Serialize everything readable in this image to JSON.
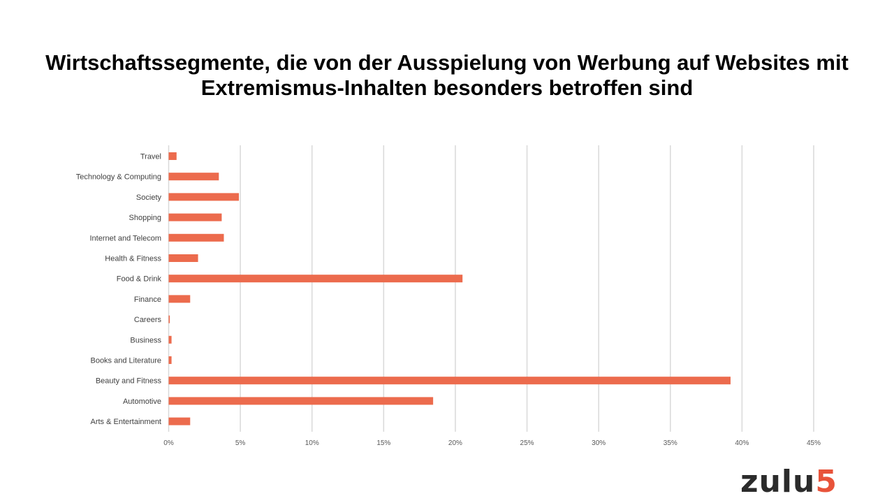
{
  "chart_data": {
    "type": "bar",
    "orientation": "horizontal",
    "title": "Wirtschaftssegmente, die von der Ausspielung von Werbung auf Websites mit Extremismus-Inhalten besonders betroffen sind",
    "categories": [
      "Travel",
      "Technology & Computing",
      "Society",
      "Shopping",
      "Internet and Telecom",
      "Health & Fitness",
      "Food & Drink",
      "Finance",
      "Careers",
      "Business",
      "Books and Literature",
      "Beauty and Fitness",
      "Automotive",
      "Arts & Entertainment"
    ],
    "values": [
      0.55,
      3.5,
      4.9,
      3.7,
      3.85,
      2.05,
      20.5,
      1.5,
      0.08,
      0.2,
      0.2,
      39.2,
      18.45,
      1.5
    ],
    "xlim": [
      0,
      45
    ],
    "xticks": [
      "0%",
      "5%",
      "10%",
      "15%",
      "20%",
      "25%",
      "30%",
      "35%",
      "40%",
      "45%"
    ],
    "grid": true,
    "bar_color": "#ec6b4d",
    "xlabel": "",
    "ylabel": ""
  },
  "logo": {
    "text": "zulu",
    "accent": "5"
  }
}
